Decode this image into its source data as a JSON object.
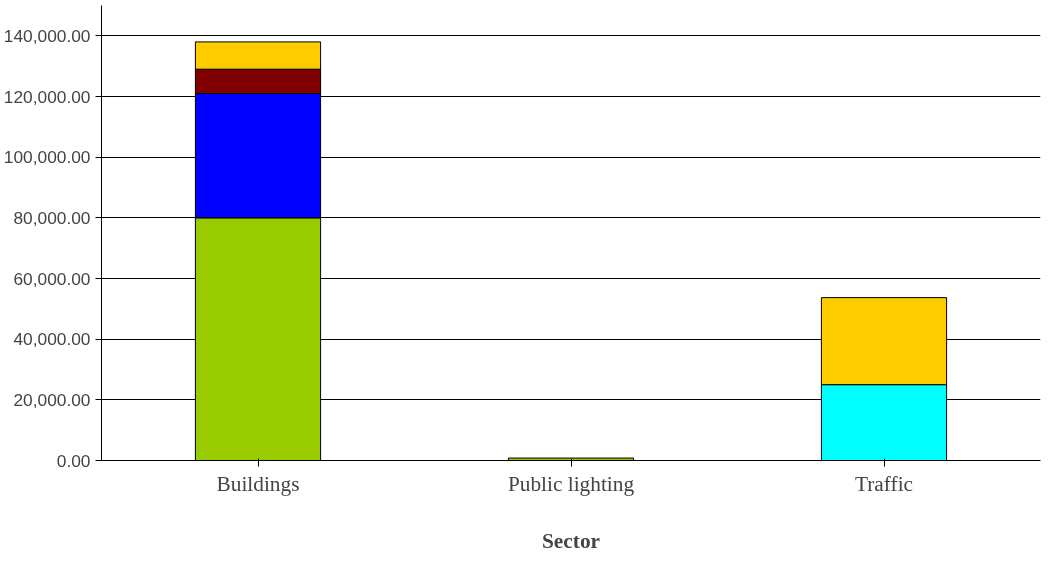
{
  "chart_data": {
    "type": "bar",
    "stacked": true,
    "xlabel": "Sector",
    "categories": [
      "Buildings",
      "Public lighting",
      "Traffic"
    ],
    "series": [
      {
        "color": "#99cc00",
        "values": [
          80000,
          800,
          null
        ]
      },
      {
        "color": "#00ffff",
        "values": [
          null,
          null,
          25000
        ]
      },
      {
        "color": "#0000ff",
        "values": [
          41000,
          null,
          null
        ]
      },
      {
        "color": "#800000",
        "values": [
          8000,
          null,
          null
        ]
      },
      {
        "color": "#ffcc00",
        "values": [
          9000,
          null,
          28700
        ]
      }
    ],
    "ylim": [
      0,
      150000
    ],
    "yticks": [
      {
        "value": 0,
        "label": "0.00"
      },
      {
        "value": 20000,
        "label": "20,000.00"
      },
      {
        "value": 40000,
        "label": "40,000.00"
      },
      {
        "value": 60000,
        "label": "60,000.00"
      },
      {
        "value": 80000,
        "label": "80,000.00"
      },
      {
        "value": 100000,
        "label": "100,000.00"
      },
      {
        "value": 120000,
        "label": "120,000.00"
      },
      {
        "value": 140000,
        "label": "140,000.00"
      }
    ],
    "grid": "y"
  }
}
